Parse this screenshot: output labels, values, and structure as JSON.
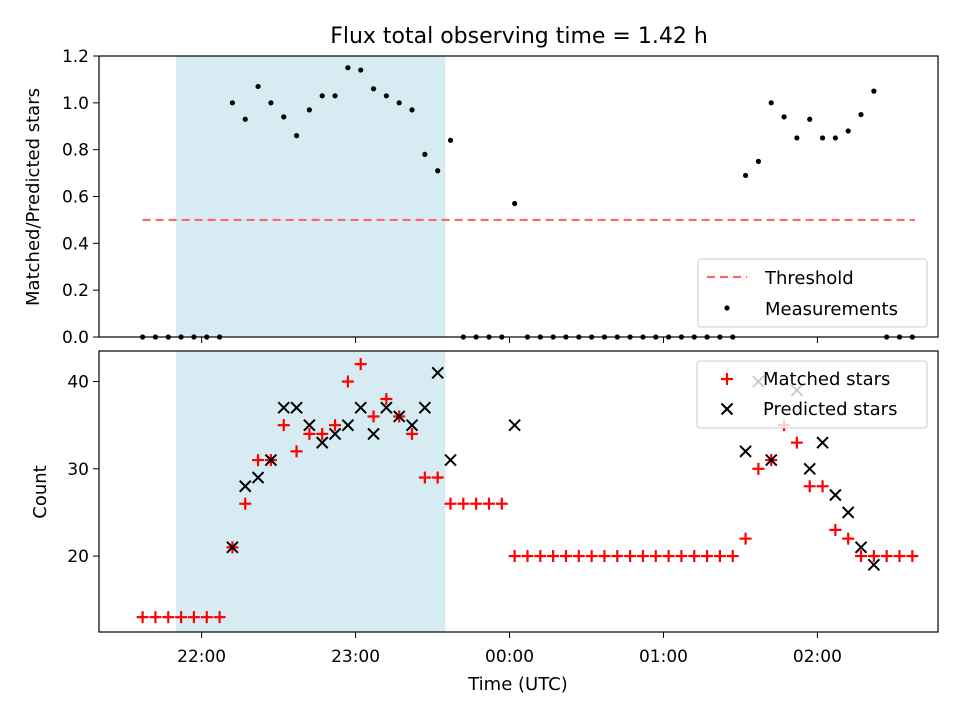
{
  "title": "Flux total observing time = 1.42 h",
  "colors": {
    "shade": "#add8e6",
    "threshold": "#ff6666",
    "matched": "#ff0000",
    "predicted": "#000000",
    "measurement": "#000000"
  },
  "chart_data": [
    {
      "type": "scatter",
      "panel": "top",
      "xlabel": "",
      "ylabel": "Matched/Predicted stars",
      "ylim": [
        0.0,
        1.2
      ],
      "yticks": [
        0.0,
        0.2,
        0.4,
        0.6,
        0.8,
        1.0,
        1.2
      ],
      "ytick_labels": [
        "0.0",
        "0.2",
        "0.4",
        "0.6",
        "0.8",
        "1.0",
        "1.2"
      ],
      "shaded_interval": [
        "21:50",
        "23:35"
      ],
      "legend_position": "lower-right",
      "threshold": {
        "name": "Threshold",
        "value": 0.5,
        "x_start": "21:37",
        "x_end": "02:38",
        "style": "dashed"
      },
      "series": [
        {
          "name": "Measurements",
          "points": [
            [
              "21:37",
              0.0
            ],
            [
              "21:42",
              0.0
            ],
            [
              "21:47",
              0.0
            ],
            [
              "21:52",
              0.0
            ],
            [
              "21:57",
              0.0
            ],
            [
              "22:02",
              0.0
            ],
            [
              "22:07",
              0.0
            ],
            [
              "22:12",
              1.0
            ],
            [
              "22:17",
              0.93
            ],
            [
              "22:22",
              1.07
            ],
            [
              "22:27",
              1.0
            ],
            [
              "22:32",
              0.94
            ],
            [
              "22:37",
              0.86
            ],
            [
              "22:42",
              0.97
            ],
            [
              "22:47",
              1.03
            ],
            [
              "22:52",
              1.03
            ],
            [
              "22:57",
              1.15
            ],
            [
              "23:02",
              1.14
            ],
            [
              "23:07",
              1.06
            ],
            [
              "23:12",
              1.03
            ],
            [
              "23:17",
              1.0
            ],
            [
              "23:22",
              0.97
            ],
            [
              "23:27",
              0.78
            ],
            [
              "23:32",
              0.71
            ],
            [
              "23:37",
              0.84
            ],
            [
              "23:42",
              0.0
            ],
            [
              "23:47",
              0.0
            ],
            [
              "23:52",
              0.0
            ],
            [
              "23:57",
              0.0
            ],
            [
              "00:02",
              0.57
            ],
            [
              "00:07",
              0.0
            ],
            [
              "00:12",
              0.0
            ],
            [
              "00:17",
              0.0
            ],
            [
              "00:22",
              0.0
            ],
            [
              "00:27",
              0.0
            ],
            [
              "00:32",
              0.0
            ],
            [
              "00:37",
              0.0
            ],
            [
              "00:42",
              0.0
            ],
            [
              "00:47",
              0.0
            ],
            [
              "00:52",
              0.0
            ],
            [
              "00:57",
              0.0
            ],
            [
              "01:02",
              0.0
            ],
            [
              "01:07",
              0.0
            ],
            [
              "01:12",
              0.0
            ],
            [
              "01:17",
              0.0
            ],
            [
              "01:22",
              0.0
            ],
            [
              "01:27",
              0.0
            ],
            [
              "01:32",
              0.69
            ],
            [
              "01:37",
              0.75
            ],
            [
              "01:42",
              1.0
            ],
            [
              "01:47",
              0.94
            ],
            [
              "01:52",
              0.85
            ],
            [
              "01:57",
              0.93
            ],
            [
              "02:02",
              0.85
            ],
            [
              "02:07",
              0.85
            ],
            [
              "02:12",
              0.88
            ],
            [
              "02:17",
              0.95
            ],
            [
              "02:22",
              1.05
            ],
            [
              "02:27",
              0.0
            ],
            [
              "02:32",
              0.0
            ],
            [
              "02:37",
              0.0
            ]
          ]
        }
      ]
    },
    {
      "type": "scatter",
      "panel": "bottom",
      "xlabel": "Time (UTC)",
      "ylabel": "Count",
      "ylim": [
        11.3,
        43.5
      ],
      "yticks": [
        20,
        30,
        40
      ],
      "ytick_labels": [
        "20",
        "30",
        "40"
      ],
      "xlim": [
        "21:20",
        "02:47"
      ],
      "xticks": [
        "22:00",
        "23:00",
        "00:00",
        "01:00",
        "02:00"
      ],
      "xtick_labels": [
        "22:00",
        "23:00",
        "00:00",
        "01:00",
        "02:00"
      ],
      "shaded_interval": [
        "21:50",
        "23:35"
      ],
      "legend_position": "top-right",
      "series": [
        {
          "name": "Matched stars",
          "marker": "plus",
          "points": [
            [
              "21:37",
              13
            ],
            [
              "21:42",
              13
            ],
            [
              "21:47",
              13
            ],
            [
              "21:52",
              13
            ],
            [
              "21:57",
              13
            ],
            [
              "22:02",
              13
            ],
            [
              "22:07",
              13
            ],
            [
              "22:12",
              21
            ],
            [
              "22:17",
              26
            ],
            [
              "22:22",
              31
            ],
            [
              "22:27",
              31
            ],
            [
              "22:32",
              35
            ],
            [
              "22:37",
              32
            ],
            [
              "22:42",
              34
            ],
            [
              "22:47",
              34
            ],
            [
              "22:52",
              35
            ],
            [
              "22:57",
              40
            ],
            [
              "23:02",
              42
            ],
            [
              "23:07",
              36
            ],
            [
              "23:12",
              38
            ],
            [
              "23:17",
              36
            ],
            [
              "23:22",
              34
            ],
            [
              "23:27",
              29
            ],
            [
              "23:32",
              29
            ],
            [
              "23:37",
              26
            ],
            [
              "23:42",
              26
            ],
            [
              "23:47",
              26
            ],
            [
              "23:52",
              26
            ],
            [
              "23:57",
              26
            ],
            [
              "00:02",
              20
            ],
            [
              "00:07",
              20
            ],
            [
              "00:12",
              20
            ],
            [
              "00:17",
              20
            ],
            [
              "00:22",
              20
            ],
            [
              "00:27",
              20
            ],
            [
              "00:32",
              20
            ],
            [
              "00:37",
              20
            ],
            [
              "00:42",
              20
            ],
            [
              "00:47",
              20
            ],
            [
              "00:52",
              20
            ],
            [
              "00:57",
              20
            ],
            [
              "01:02",
              20
            ],
            [
              "01:07",
              20
            ],
            [
              "01:12",
              20
            ],
            [
              "01:17",
              20
            ],
            [
              "01:22",
              20
            ],
            [
              "01:27",
              20
            ],
            [
              "01:32",
              22
            ],
            [
              "01:37",
              30
            ],
            [
              "01:42",
              31
            ],
            [
              "01:47",
              35
            ],
            [
              "01:52",
              33
            ],
            [
              "01:57",
              28
            ],
            [
              "02:02",
              28
            ],
            [
              "02:07",
              23
            ],
            [
              "02:12",
              22
            ],
            [
              "02:17",
              20
            ],
            [
              "02:22",
              20
            ],
            [
              "02:27",
              20
            ],
            [
              "02:32",
              20
            ],
            [
              "02:37",
              20
            ]
          ]
        },
        {
          "name": "Predicted stars",
          "marker": "x",
          "points": [
            [
              "22:12",
              21
            ],
            [
              "22:17",
              28
            ],
            [
              "22:22",
              29
            ],
            [
              "22:27",
              31
            ],
            [
              "22:32",
              37
            ],
            [
              "22:37",
              37
            ],
            [
              "22:42",
              35
            ],
            [
              "22:47",
              33
            ],
            [
              "22:52",
              34
            ],
            [
              "22:57",
              35
            ],
            [
              "23:02",
              37
            ],
            [
              "23:07",
              34
            ],
            [
              "23:12",
              37
            ],
            [
              "23:17",
              36
            ],
            [
              "23:22",
              35
            ],
            [
              "23:27",
              37
            ],
            [
              "23:32",
              41
            ],
            [
              "23:37",
              31
            ],
            [
              "00:02",
              35
            ],
            [
              "01:32",
              32
            ],
            [
              "01:37",
              40
            ],
            [
              "01:42",
              31
            ],
            [
              "01:52",
              39
            ],
            [
              "01:57",
              30
            ],
            [
              "02:02",
              33
            ],
            [
              "02:07",
              27
            ],
            [
              "02:12",
              25
            ],
            [
              "02:17",
              21
            ],
            [
              "02:22",
              19
            ]
          ]
        }
      ]
    }
  ]
}
